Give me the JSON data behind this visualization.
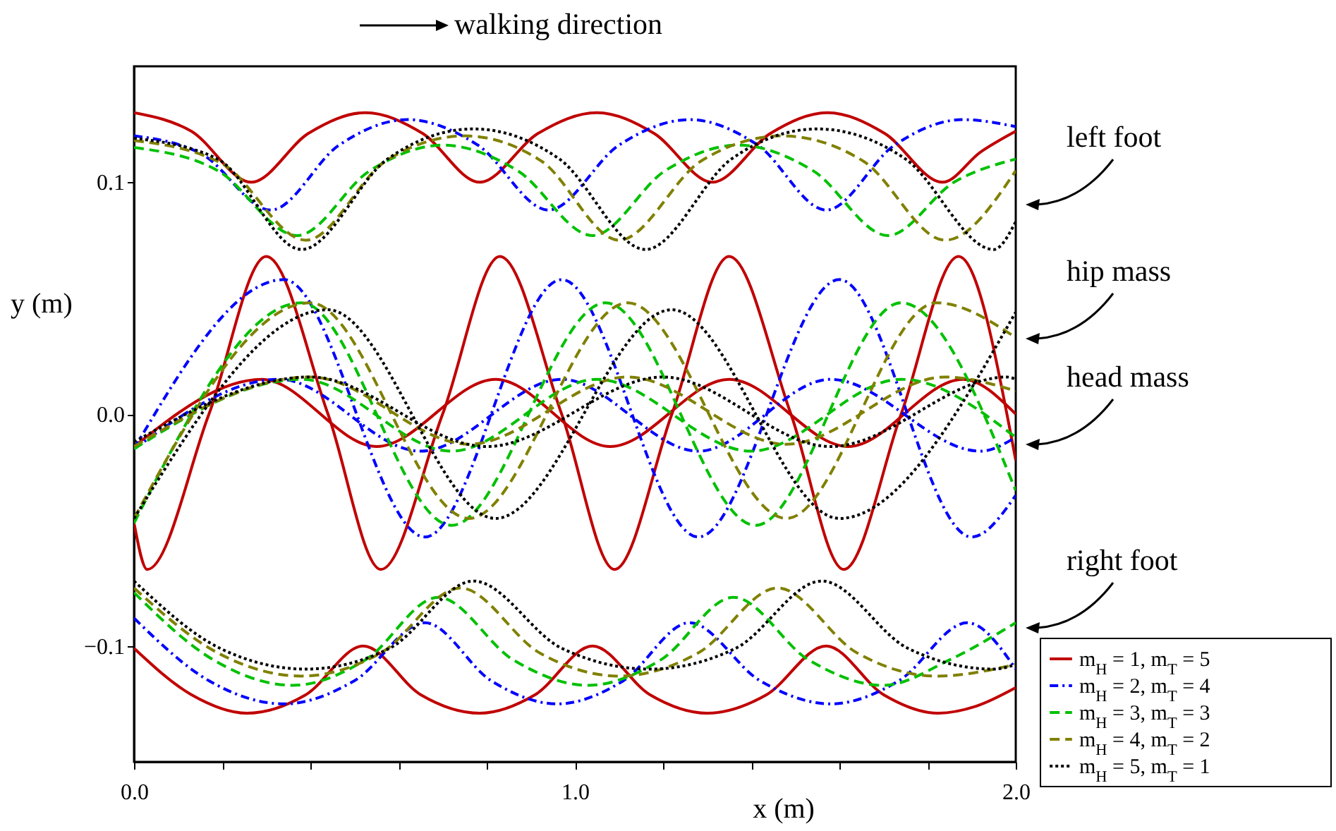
{
  "chart_data": {
    "type": "line",
    "xlabel": "x (m)",
    "ylabel": "y (m)",
    "xlim": [
      0,
      2.0
    ],
    "ylim": [
      -0.15,
      0.15
    ],
    "xticks": [
      {
        "value": 0,
        "label": "0.0"
      },
      {
        "value": 0.2,
        "label": null
      },
      {
        "value": 0.4,
        "label": null
      },
      {
        "value": 0.6,
        "label": null
      },
      {
        "value": 0.8,
        "label": null
      },
      {
        "value": 1.0,
        "label": "1.0"
      },
      {
        "value": 1.2,
        "label": null
      },
      {
        "value": 1.4,
        "label": null
      },
      {
        "value": 1.6,
        "label": null
      },
      {
        "value": 1.8,
        "label": null
      },
      {
        "value": 2.0,
        "label": "2.0"
      }
    ],
    "yticks": [
      {
        "value": -0.1,
        "label": "−0.1"
      },
      {
        "value": 0,
        "label": "0.0"
      },
      {
        "value": 0.1,
        "label": "0.1"
      }
    ],
    "grid": false,
    "legend": "bottom right",
    "annotations": [
      "walking direction",
      "left foot",
      "hip mass",
      "head mass",
      "right foot"
    ],
    "series": [
      {
        "name": "m$_{H}$ = 1, m$_{T}$ = 5",
        "color": "#c00000",
        "line_style": "solid",
        "x": [
          0,
          0.13,
          0.266,
          0.395,
          0.525,
          0.655,
          0.784,
          0.916,
          1.05,
          1.18,
          1.312,
          1.443,
          1.573,
          1.703,
          1.834,
          1.92,
          2.0
        ],
        "values": [
          0.13,
          0.122,
          0.1,
          0.121,
          0.13,
          0.121,
          0.1,
          0.121,
          0.13,
          0.121,
          0.1,
          0.121,
          0.13,
          0.121,
          0.1,
          0.113,
          0.122
        ]
      },
      {
        "color": "#c00000",
        "line_style": "solid",
        "x": [
          0,
          0.03,
          0.17,
          0.3,
          0.44,
          0.56,
          0.7,
          0.83,
          0.97,
          1.09,
          1.22,
          1.35,
          1.49,
          1.61,
          1.74,
          1.87,
          2.0
        ],
        "values": [
          -0.047,
          -0.067,
          0.0,
          0.068,
          0.0,
          -0.067,
          0.0,
          0.068,
          0.0,
          -0.067,
          0.0,
          0.068,
          0.0,
          -0.067,
          0.0,
          0.068,
          -0.02
        ]
      },
      {
        "color": "#c00000",
        "line_style": "solid",
        "x": [
          0,
          0.29,
          0.55,
          0.82,
          1.08,
          1.35,
          1.62,
          1.88,
          2.0
        ],
        "values": [
          -0.014,
          0.015,
          -0.014,
          0.015,
          -0.014,
          0.015,
          -0.014,
          0.015,
          0.0
        ]
      },
      {
        "color": "#c00000",
        "line_style": "solid",
        "x": [
          0,
          0.13,
          0.256,
          0.39,
          0.52,
          0.65,
          0.784,
          0.91,
          1.04,
          1.17,
          1.3,
          1.435,
          1.57,
          1.7,
          1.824,
          1.91,
          2.0
        ],
        "values": [
          -0.101,
          -0.121,
          -0.129,
          -0.121,
          -0.1,
          -0.121,
          -0.129,
          -0.121,
          -0.1,
          -0.121,
          -0.129,
          -0.121,
          -0.1,
          -0.121,
          -0.129,
          -0.126,
          -0.118
        ]
      },
      {
        "name": "m$_{H}$ = 2, m$_{T}$ = 4",
        "color": "#0000ff",
        "line_style": "dashdot",
        "x": [
          0,
          0.155,
          0.31,
          0.465,
          0.62,
          0.78,
          0.94,
          1.1,
          1.26,
          1.415,
          1.57,
          1.725,
          1.88,
          2.0
        ],
        "values": [
          0.12,
          0.112,
          0.088,
          0.116,
          0.127,
          0.116,
          0.088,
          0.116,
          0.127,
          0.116,
          0.088,
          0.116,
          0.127,
          0.124
        ]
      },
      {
        "color": "#0000ff",
        "line_style": "dashdot",
        "x": [
          0,
          0.34,
          0.66,
          0.97,
          1.28,
          1.6,
          1.9,
          2.0
        ],
        "values": [
          -0.015,
          0.058,
          -0.053,
          0.058,
          -0.053,
          0.058,
          -0.053,
          -0.035
        ]
      },
      {
        "color": "#0000ff",
        "line_style": "dashdot",
        "x": [
          0,
          0.33,
          0.65,
          0.97,
          1.28,
          1.58,
          1.92,
          2.0
        ],
        "values": [
          -0.015,
          0.015,
          -0.016,
          0.015,
          -0.016,
          0.015,
          -0.016,
          -0.01
        ]
      },
      {
        "color": "#0000ff",
        "line_style": "dashdot",
        "x": [
          0,
          0.17,
          0.34,
          0.5,
          0.66,
          0.81,
          0.96,
          1.11,
          1.26,
          1.42,
          1.58,
          1.735,
          1.89,
          2.0
        ],
        "values": [
          -0.088,
          -0.115,
          -0.125,
          -0.115,
          -0.09,
          -0.115,
          -0.125,
          -0.115,
          -0.09,
          -0.115,
          -0.125,
          -0.115,
          -0.09,
          -0.11
        ]
      },
      {
        "name": "m$_{H}$ = 3, m$_{T}$ = 3",
        "color": "#00c000",
        "line_style": "dashed",
        "x": [
          0,
          0.19,
          0.37,
          0.535,
          0.7,
          0.87,
          1.04,
          1.205,
          1.37,
          1.54,
          1.71,
          1.86,
          2.0
        ],
        "values": [
          0.115,
          0.105,
          0.077,
          0.105,
          0.116,
          0.105,
          0.077,
          0.105,
          0.116,
          0.105,
          0.077,
          0.1,
          0.11
        ]
      },
      {
        "color": "#00c000",
        "line_style": "dashed",
        "x": [
          0,
          0.38,
          0.72,
          1.07,
          1.41,
          1.74,
          2.0
        ],
        "values": [
          -0.047,
          0.048,
          -0.048,
          0.048,
          -0.048,
          0.048,
          -0.033
        ]
      },
      {
        "color": "#00c000",
        "line_style": "dashed",
        "x": [
          0,
          0.38,
          0.72,
          1.05,
          1.4,
          1.74,
          2.0
        ],
        "values": [
          -0.015,
          0.015,
          -0.016,
          0.015,
          -0.016,
          0.015,
          -0.01
        ]
      },
      {
        "color": "#00c000",
        "line_style": "dashed",
        "x": [
          0,
          0.18,
          0.36,
          0.525,
          0.69,
          0.86,
          1.03,
          1.195,
          1.36,
          1.53,
          1.7,
          1.85,
          2.0
        ],
        "values": [
          -0.077,
          -0.106,
          -0.117,
          -0.106,
          -0.079,
          -0.106,
          -0.117,
          -0.106,
          -0.079,
          -0.106,
          -0.117,
          -0.106,
          -0.09
        ]
      },
      {
        "name": "m$_{H}$ = 4, m$_{T}$ = 2",
        "color": "#808000",
        "line_style": "dashed",
        "x": [
          0,
          0.2,
          0.39,
          0.57,
          0.75,
          0.925,
          1.1,
          1.285,
          1.47,
          1.655,
          1.84,
          2.0
        ],
        "values": [
          0.118,
          0.108,
          0.075,
          0.109,
          0.12,
          0.109,
          0.075,
          0.109,
          0.12,
          0.109,
          0.075,
          0.105
        ]
      },
      {
        "color": "#808000",
        "line_style": "dashed",
        "x": [
          0,
          0.4,
          0.76,
          1.12,
          1.48,
          1.82,
          2.0
        ],
        "values": [
          -0.045,
          0.048,
          -0.045,
          0.048,
          -0.045,
          0.048,
          0.033
        ]
      },
      {
        "color": "#808000",
        "line_style": "dashed",
        "x": [
          0,
          0.4,
          0.76,
          1.12,
          1.48,
          1.84,
          2.0
        ],
        "values": [
          -0.014,
          0.016,
          -0.013,
          0.016,
          -0.013,
          0.016,
          0.01
        ]
      },
      {
        "color": "#808000",
        "line_style": "dashed",
        "x": [
          0,
          0.19,
          0.38,
          0.56,
          0.74,
          0.92,
          1.1,
          1.28,
          1.46,
          1.64,
          1.82,
          2.0
        ],
        "values": [
          -0.075,
          -0.103,
          -0.113,
          -0.103,
          -0.075,
          -0.103,
          -0.113,
          -0.103,
          -0.075,
          -0.103,
          -0.113,
          -0.108
        ]
      },
      {
        "name": "m$_{H}$ = 5, m$_{T}$ = 1",
        "color": "#000000",
        "line_style": "dotted",
        "x": [
          0,
          0.19,
          0.38,
          0.575,
          0.77,
          0.965,
          1.16,
          1.355,
          1.55,
          1.75,
          1.95,
          2.0
        ],
        "values": [
          0.119,
          0.11,
          0.071,
          0.11,
          0.123,
          0.11,
          0.071,
          0.11,
          0.123,
          0.11,
          0.071,
          0.083
        ]
      },
      {
        "color": "#000000",
        "line_style": "dotted",
        "x": [
          0,
          0.44,
          0.82,
          1.22,
          1.6,
          2.0
        ],
        "values": [
          -0.045,
          0.045,
          -0.045,
          0.045,
          -0.045,
          0.044
        ]
      },
      {
        "color": "#000000",
        "line_style": "dotted",
        "x": [
          0,
          0.4,
          0.8,
          1.2,
          1.58,
          1.98,
          2.0
        ],
        "values": [
          -0.012,
          0.016,
          -0.014,
          0.016,
          -0.014,
          0.016,
          0.015
        ]
      },
      {
        "color": "#000000",
        "line_style": "dotted",
        "x": [
          0,
          0.195,
          0.39,
          0.58,
          0.77,
          0.97,
          1.17,
          1.365,
          1.56,
          1.755,
          1.95,
          2.0
        ],
        "values": [
          -0.072,
          -0.101,
          -0.11,
          -0.101,
          -0.072,
          -0.101,
          -0.11,
          -0.101,
          -0.072,
          -0.101,
          -0.11,
          -0.108
        ]
      }
    ]
  }
}
